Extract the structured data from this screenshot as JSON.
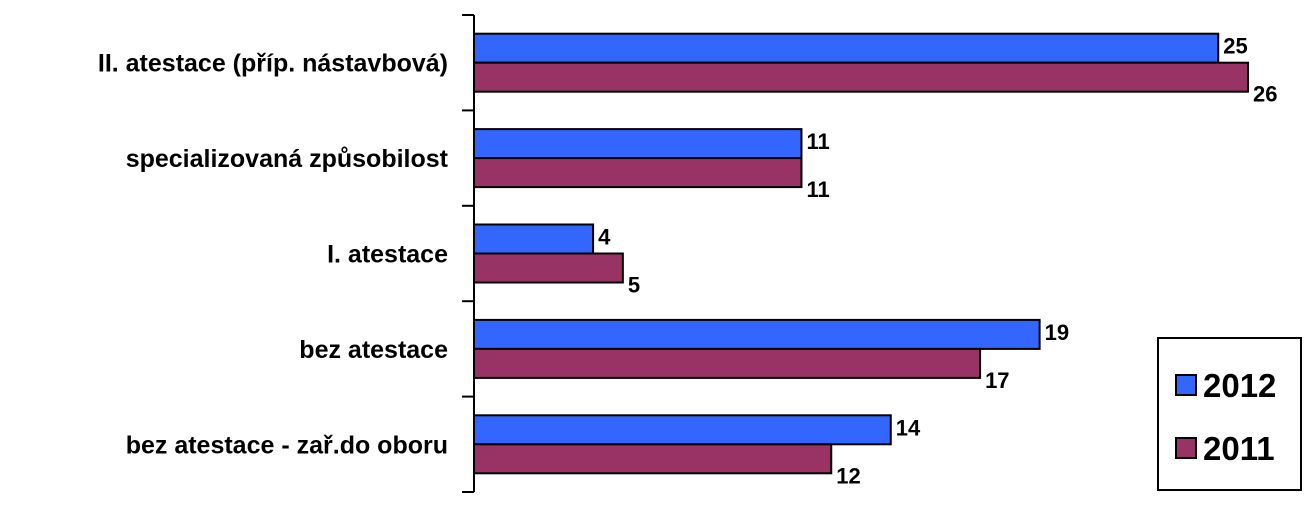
{
  "chart_data": {
    "type": "bar",
    "orientation": "horizontal",
    "categories": [
      "II. atestace (příp. nástavbová)",
      "specializovaná způsobilost",
      "I. atestace",
      "bez atestace",
      "bez atestace - zař.do oboru"
    ],
    "series": [
      {
        "name": "2012",
        "color": "#3366ff",
        "values": [
          25,
          11,
          4,
          19,
          14
        ]
      },
      {
        "name": "2011",
        "color": "#993366",
        "values": [
          26,
          11,
          5,
          17,
          12
        ]
      }
    ],
    "xlim": [
      0,
      26
    ],
    "grid": false,
    "data_labels": true,
    "legend_position": "bottom-right"
  }
}
